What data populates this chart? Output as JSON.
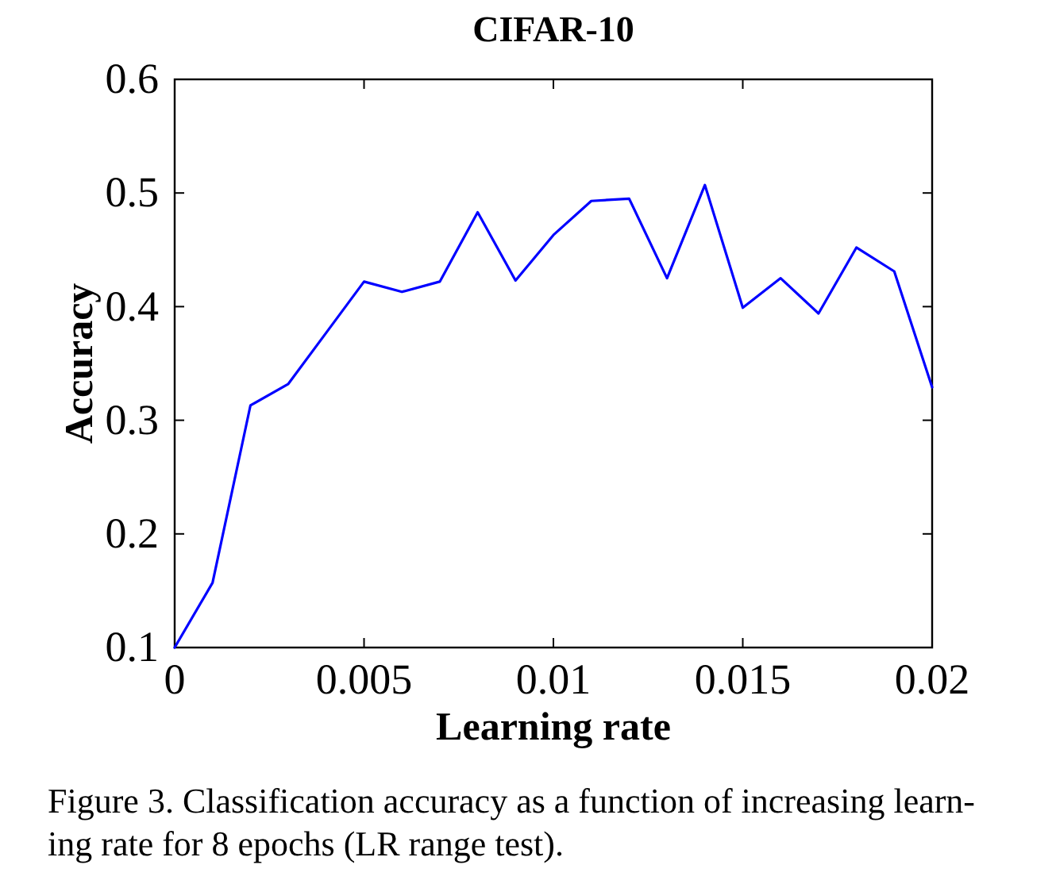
{
  "chart_data": {
    "type": "line",
    "title": "CIFAR-10",
    "xlabel": "Learning rate",
    "ylabel": "Accuracy",
    "x": [
      0,
      0.001,
      0.002,
      0.003,
      0.004,
      0.005,
      0.006,
      0.007,
      0.008,
      0.009,
      0.01,
      0.011,
      0.012,
      0.013,
      0.014,
      0.015,
      0.016,
      0.017,
      0.018,
      0.019,
      0.02
    ],
    "series": [
      {
        "color": "#0000ff",
        "values": [
          0.1,
          0.157,
          0.313,
          0.332,
          0.377,
          0.422,
          0.413,
          0.422,
          0.483,
          0.423,
          0.463,
          0.493,
          0.495,
          0.425,
          0.507,
          0.399,
          0.425,
          0.394,
          0.452,
          0.431,
          0.329
        ]
      }
    ],
    "xlim": [
      0,
      0.02
    ],
    "ylim": [
      0.1,
      0.6
    ],
    "xticks": [
      0,
      0.005,
      0.01,
      0.015,
      0.02
    ],
    "yticks": [
      0.1,
      0.2,
      0.3,
      0.4,
      0.5,
      0.6
    ],
    "line_style": "solid",
    "annotations": [
      "Figure 3. Classification accuracy as a function of increasing learn-ing rate for 8 epochs (LR range test)."
    ]
  }
}
